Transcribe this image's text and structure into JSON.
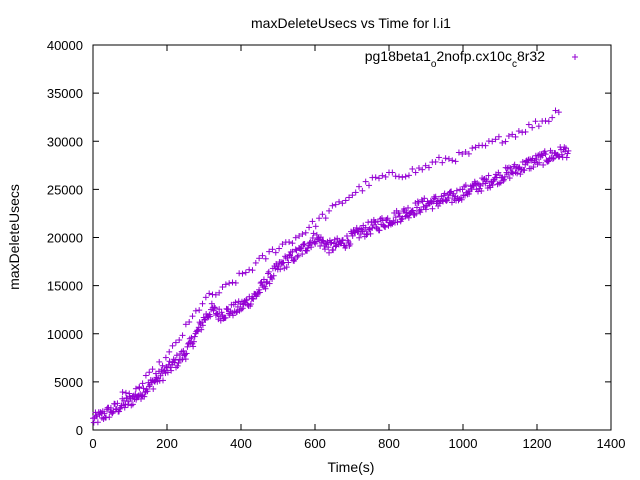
{
  "chart_data": {
    "type": "scatter",
    "title": "maxDeleteUsecs vs Time for l.i1",
    "xlabel": "Time(s)",
    "ylabel": "maxDeleteUsecs",
    "xlim": [
      0,
      1400
    ],
    "ylim": [
      0,
      40000
    ],
    "x_ticks": [
      0,
      200,
      400,
      600,
      800,
      1000,
      1200,
      1400
    ],
    "y_ticks": [
      0,
      5000,
      10000,
      15000,
      20000,
      25000,
      30000,
      35000,
      40000
    ],
    "grid": false,
    "legend_position": "top-right",
    "marker": "+",
    "color": "#9400d3",
    "series": [
      {
        "name": "pg18beta1_o2nofp.cx10c_c8r32",
        "legend_parts": [
          {
            "text": "pg18beta1",
            "sub": false
          },
          {
            "text": "o",
            "sub": true
          },
          {
            "text": "2nofp.cx10c",
            "sub": false
          },
          {
            "text": "c",
            "sub": true
          },
          {
            "text": "8r32",
            "sub": false
          }
        ],
        "trend": [
          [
            0,
            1000
          ],
          [
            50,
            2000
          ],
          [
            100,
            3000
          ],
          [
            150,
            4500
          ],
          [
            200,
            6200
          ],
          [
            250,
            8000
          ],
          [
            280,
            10000
          ],
          [
            300,
            11500
          ],
          [
            320,
            12500
          ],
          [
            340,
            12000
          ],
          [
            360,
            12200
          ],
          [
            400,
            12800
          ],
          [
            440,
            14000
          ],
          [
            480,
            16000
          ],
          [
            520,
            17500
          ],
          [
            560,
            18500
          ],
          [
            600,
            20000
          ],
          [
            640,
            19000
          ],
          [
            680,
            19500
          ],
          [
            720,
            20500
          ],
          [
            780,
            21500
          ],
          [
            840,
            22500
          ],
          [
            900,
            23500
          ],
          [
            960,
            24000
          ],
          [
            1020,
            25000
          ],
          [
            1080,
            26000
          ],
          [
            1140,
            27000
          ],
          [
            1200,
            28000
          ],
          [
            1280,
            29000
          ]
        ],
        "upper_band": [
          [
            100,
            3500
          ],
          [
            150,
            5500
          ],
          [
            200,
            7500
          ],
          [
            250,
            10500
          ],
          [
            300,
            13500
          ],
          [
            350,
            14500
          ],
          [
            400,
            16000
          ],
          [
            450,
            17500
          ],
          [
            500,
            19000
          ],
          [
            550,
            20000
          ],
          [
            600,
            21500
          ],
          [
            650,
            23000
          ],
          [
            700,
            24500
          ],
          [
            760,
            26000
          ],
          [
            820,
            26500
          ],
          [
            880,
            27000
          ],
          [
            940,
            28000
          ],
          [
            1000,
            28500
          ],
          [
            1060,
            29500
          ],
          [
            1120,
            30500
          ],
          [
            1180,
            31500
          ],
          [
            1240,
            32500
          ],
          [
            1260,
            33500
          ]
        ]
      }
    ]
  }
}
